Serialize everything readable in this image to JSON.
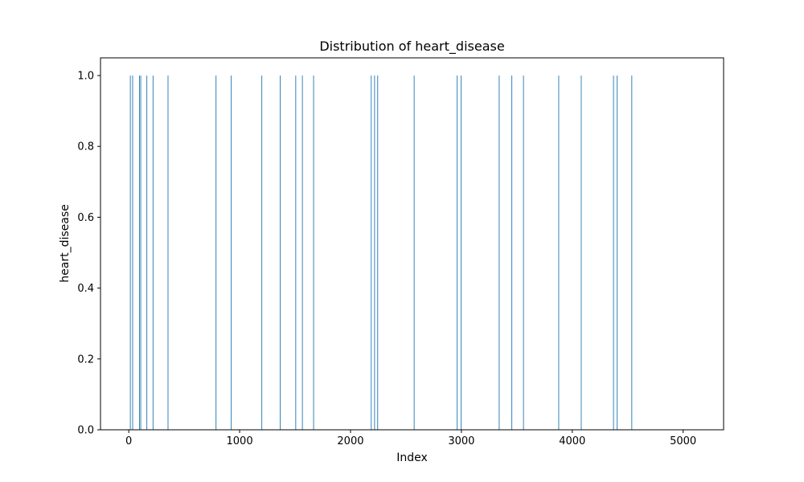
{
  "chart_data": {
    "type": "bar",
    "title": "Distribution of heart_disease",
    "xlabel": "Index",
    "ylabel": "heart_disease",
    "xlim": [
      -255,
      5365
    ],
    "ylim": [
      0,
      1.05
    ],
    "xticks": [
      0,
      1000,
      2000,
      3000,
      4000,
      5000
    ],
    "xtick_labels": [
      "0",
      "1000",
      "2000",
      "3000",
      "4000",
      "5000"
    ],
    "yticks": [
      0.0,
      0.2,
      0.4,
      0.6,
      0.8,
      1.0
    ],
    "ytick_labels": [
      "0.0",
      "0.2",
      "0.4",
      "0.6",
      "0.8",
      "1.0"
    ],
    "grid": false,
    "bar_color": "#1f77b4",
    "n_index": 5110,
    "nonzero_x": [
      14,
      35,
      97,
      108,
      163,
      219,
      354,
      787,
      924,
      1200,
      1366,
      1506,
      1566,
      1667,
      2187,
      2217,
      2245,
      2574,
      2962,
      2998,
      3341,
      3455,
      3560,
      3878,
      4081,
      4372,
      4405,
      4537
    ],
    "nonzero_y": [
      1,
      1,
      1,
      1,
      1,
      1,
      1,
      1,
      1,
      1,
      1,
      1,
      1,
      1,
      1,
      1,
      1,
      1,
      1,
      1,
      1,
      1,
      1,
      1,
      1,
      1,
      1,
      1
    ]
  }
}
